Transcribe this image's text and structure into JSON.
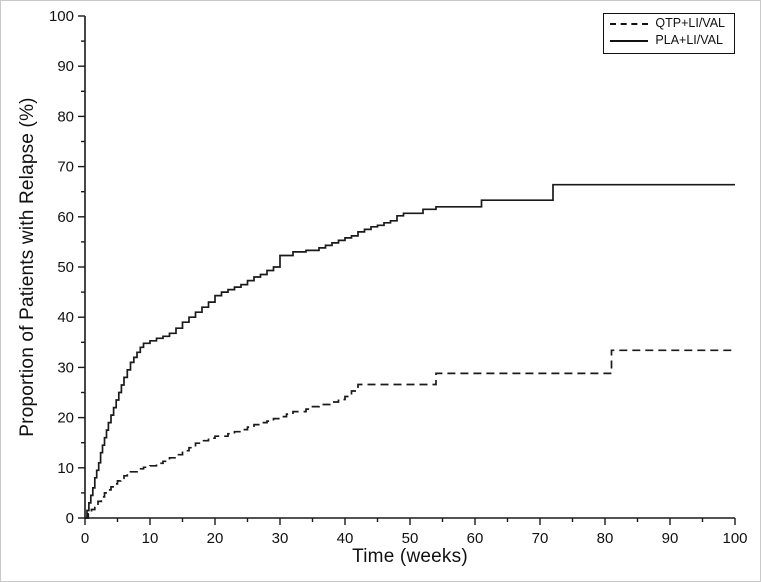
{
  "chart_data": {
    "type": "line",
    "subtype": "kaplan-meier-step",
    "title": "",
    "xlabel": "Time (weeks)",
    "ylabel": "Proportion of Patients with Relapse (%)",
    "xlim": [
      0,
      100
    ],
    "ylim": [
      0,
      100
    ],
    "x_ticks": [
      0,
      10,
      20,
      30,
      40,
      50,
      60,
      70,
      80,
      90,
      100
    ],
    "y_ticks": [
      0,
      10,
      20,
      30,
      40,
      50,
      60,
      70,
      80,
      90,
      100
    ],
    "minor_tick_step": 5,
    "grid": false,
    "background": "#ffffff",
    "line_color": "#1a1a1a",
    "legend": {
      "position": "top-right",
      "entries": [
        {
          "label": "QTP+LI/VAL",
          "line": "dashed"
        },
        {
          "label": "PLA+LI/VAL",
          "line": "solid"
        }
      ]
    },
    "series": [
      {
        "name": "QTP+LI/VAL",
        "style": "dashed",
        "color": "#1a1a1a",
        "points": [
          [
            0,
            0
          ],
          [
            0.5,
            0.8
          ],
          [
            1,
            1.7
          ],
          [
            1.5,
            2.5
          ],
          [
            2,
            3.3
          ],
          [
            2.5,
            4.2
          ],
          [
            3,
            5.0
          ],
          [
            3.5,
            5.6
          ],
          [
            4,
            6.2
          ],
          [
            4.5,
            6.8
          ],
          [
            5,
            7.4
          ],
          [
            5.5,
            7.9
          ],
          [
            6,
            8.4
          ],
          [
            6.5,
            8.8
          ],
          [
            7,
            9.2
          ],
          [
            8,
            9.8
          ],
          [
            9,
            10.1
          ],
          [
            10,
            10.4
          ],
          [
            11,
            10.9
          ],
          [
            12,
            11.3
          ],
          [
            13,
            12.0
          ],
          [
            14,
            12.6
          ],
          [
            15,
            13.4
          ],
          [
            16,
            14.0
          ],
          [
            17,
            14.9
          ],
          [
            18,
            15.4
          ],
          [
            19,
            15.9
          ],
          [
            20,
            16.3
          ],
          [
            22,
            16.8
          ],
          [
            23,
            17.2
          ],
          [
            24,
            17.6
          ],
          [
            25,
            18.1
          ],
          [
            26,
            18.6
          ],
          [
            27,
            19.0
          ],
          [
            28,
            19.3
          ],
          [
            29,
            19.8
          ],
          [
            30,
            20.2
          ],
          [
            31,
            20.7
          ],
          [
            32,
            21.2
          ],
          [
            34,
            21.7
          ],
          [
            35,
            22.2
          ],
          [
            36,
            22.6
          ],
          [
            38,
            23.1
          ],
          [
            39,
            23.6
          ],
          [
            40,
            24.2
          ],
          [
            41,
            25.3
          ],
          [
            42,
            26.6
          ],
          [
            54,
            28.8
          ],
          [
            81,
            33.4
          ],
          [
            100,
            33.4
          ]
        ]
      },
      {
        "name": "PLA+LI/VAL",
        "style": "solid",
        "color": "#1a1a1a",
        "points": [
          [
            0,
            0
          ],
          [
            0.3,
            1.5
          ],
          [
            0.6,
            3
          ],
          [
            0.9,
            4.5
          ],
          [
            1.2,
            6
          ],
          [
            1.5,
            8
          ],
          [
            1.8,
            9.5
          ],
          [
            2.1,
            11
          ],
          [
            2.4,
            13
          ],
          [
            2.7,
            14.5
          ],
          [
            3,
            16
          ],
          [
            3.3,
            17.5
          ],
          [
            3.6,
            19
          ],
          [
            4,
            20.5
          ],
          [
            4.4,
            22
          ],
          [
            4.8,
            23.5
          ],
          [
            5.2,
            25
          ],
          [
            5.6,
            26.5
          ],
          [
            6,
            28
          ],
          [
            6.5,
            29.5
          ],
          [
            7,
            31
          ],
          [
            7.5,
            32
          ],
          [
            8,
            33
          ],
          [
            8.5,
            34
          ],
          [
            9,
            34.8
          ],
          [
            10,
            35.3
          ],
          [
            11,
            35.8
          ],
          [
            12,
            36.2
          ],
          [
            13,
            36.8
          ],
          [
            14,
            37.8
          ],
          [
            15,
            39.0
          ],
          [
            16,
            40.0
          ],
          [
            17,
            41.0
          ],
          [
            18,
            42.0
          ],
          [
            19,
            43.0
          ],
          [
            20,
            44.3
          ],
          [
            21,
            45.0
          ],
          [
            22,
            45.5
          ],
          [
            23,
            46.0
          ],
          [
            24,
            46.5
          ],
          [
            25,
            47.3
          ],
          [
            26,
            48.0
          ],
          [
            27,
            48.5
          ],
          [
            28,
            49.3
          ],
          [
            29,
            50.0
          ],
          [
            30,
            52.3
          ],
          [
            32,
            53.0
          ],
          [
            34,
            53.3
          ],
          [
            36,
            53.8
          ],
          [
            37,
            54.3
          ],
          [
            38,
            54.8
          ],
          [
            39,
            55.3
          ],
          [
            40,
            55.8
          ],
          [
            41,
            56.2
          ],
          [
            42,
            57.0
          ],
          [
            43,
            57.5
          ],
          [
            44,
            58.0
          ],
          [
            45,
            58.3
          ],
          [
            46,
            58.8
          ],
          [
            47,
            59.2
          ],
          [
            48,
            60.2
          ],
          [
            49,
            60.7
          ],
          [
            52,
            61.5
          ],
          [
            54,
            62.0
          ],
          [
            61,
            63.3
          ],
          [
            72,
            66.4
          ],
          [
            100,
            66.4
          ]
        ]
      }
    ]
  }
}
